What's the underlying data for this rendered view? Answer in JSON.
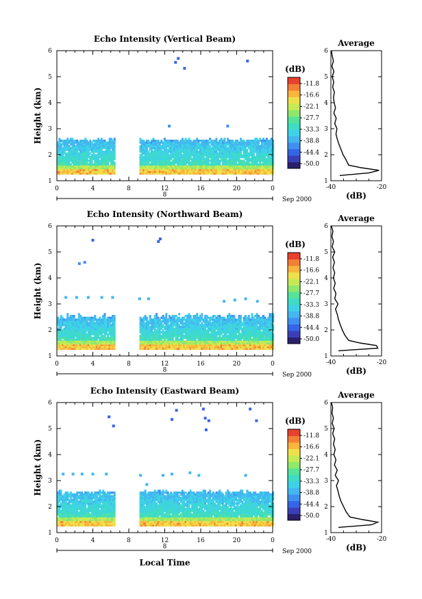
{
  "colors": {
    "scale": [
      "#2b1f6e",
      "#3a3fb8",
      "#3565e6",
      "#3f8ff0",
      "#44b6f0",
      "#3ed2e8",
      "#3fdcc4",
      "#55e39b",
      "#8fe86c",
      "#c5ea55",
      "#eee04a",
      "#f9b53d",
      "#f47f36",
      "#e8412e"
    ],
    "curve": "#000000",
    "axis": "#000000"
  },
  "colorbar": {
    "unit": "(dB)",
    "ticks": [
      "-11.8",
      "-16.6",
      "-22.1",
      "-27.7",
      "-33.3",
      "-38.8",
      "-44.4",
      "-50.0"
    ]
  },
  "date_label": "Sep 2000",
  "day_label": "8",
  "xlabel": "Local Time",
  "chart_data": [
    {
      "type": "heatmap",
      "title": "Echo Intensity (Vertical Beam)",
      "ylabel": "Height (km)",
      "xlim": [
        0,
        24
      ],
      "ylim": [
        1,
        6
      ],
      "xticks": [
        "0",
        "4",
        "8",
        "12",
        "16",
        "20",
        "0"
      ],
      "yticks": [
        "1",
        "2",
        "3",
        "4",
        "5",
        "6"
      ],
      "gap": [
        6.3,
        9.0
      ],
      "echo_layer_top_km": [
        2.5,
        2.6
      ],
      "peak_echo_km": 1.4,
      "scattered_points": [
        {
          "t": 13.2,
          "h": 5.55,
          "level": 2
        },
        {
          "t": 13.5,
          "h": 5.7,
          "level": 2
        },
        {
          "t": 14.2,
          "h": 5.32,
          "level": 2
        },
        {
          "t": 21.2,
          "h": 5.6,
          "level": 2
        },
        {
          "t": 12.5,
          "h": 3.1,
          "level": 3
        },
        {
          "t": 19.0,
          "h": 3.1,
          "level": 3
        }
      ],
      "average": {
        "title": "Average",
        "xlabel": "(dB)",
        "xlim": [
          -40,
          -20
        ],
        "xticks": [
          "-40",
          "-20"
        ],
        "height_km": [
          1.2,
          1.3,
          1.4,
          1.5,
          1.6,
          1.8,
          2.0,
          2.2,
          2.4,
          2.6,
          2.8,
          3.0,
          3.2,
          3.4,
          3.6,
          3.8,
          4.0,
          4.2,
          4.4,
          4.6,
          4.8,
          5.0,
          5.2,
          5.4,
          5.6,
          5.8,
          6.0
        ],
        "dB": [
          -36.5,
          -25.0,
          -21.0,
          -28.0,
          -33.0,
          -34.0,
          -35.2,
          -36.0,
          -36.8,
          -37.5,
          -38.0,
          -37.6,
          -38.5,
          -37.9,
          -38.8,
          -38.2,
          -38.7,
          -39.0,
          -38.6,
          -39.3,
          -38.9,
          -39.5,
          -38.8,
          -39.6,
          -39.0,
          -39.5,
          -39.8
        ]
      }
    },
    {
      "type": "heatmap",
      "title": "Echo Intensity (Northward Beam)",
      "ylabel": "Height (km)",
      "xlim": [
        0,
        24
      ],
      "ylim": [
        1,
        6
      ],
      "xticks": [
        "0",
        "4",
        "8",
        "12",
        "16",
        "20",
        "0"
      ],
      "yticks": [
        "1",
        "2",
        "3",
        "4",
        "5",
        "6"
      ],
      "gap": [
        6.3,
        9.0
      ],
      "echo_layer_top_km": [
        2.4,
        2.6
      ],
      "peak_echo_km": 1.35,
      "scattered_points": [
        {
          "t": 4.0,
          "h": 5.45,
          "level": 2
        },
        {
          "t": 11.5,
          "h": 5.5,
          "level": 2
        },
        {
          "t": 11.3,
          "h": 5.4,
          "level": 2
        },
        {
          "t": 2.5,
          "h": 4.55,
          "level": 3
        },
        {
          "t": 3.1,
          "h": 4.6,
          "level": 3
        },
        {
          "t": 1.0,
          "h": 3.25,
          "level": 4
        },
        {
          "t": 2.2,
          "h": 3.25,
          "level": 4
        },
        {
          "t": 3.5,
          "h": 3.25,
          "level": 4
        },
        {
          "t": 5.0,
          "h": 3.25,
          "level": 4
        },
        {
          "t": 6.2,
          "h": 3.25,
          "level": 4
        },
        {
          "t": 9.2,
          "h": 3.2,
          "level": 4
        },
        {
          "t": 10.2,
          "h": 3.2,
          "level": 4
        },
        {
          "t": 18.6,
          "h": 3.1,
          "level": 4
        },
        {
          "t": 19.8,
          "h": 3.15,
          "level": 4
        },
        {
          "t": 21.0,
          "h": 3.2,
          "level": 4
        },
        {
          "t": 22.3,
          "h": 3.1,
          "level": 4
        }
      ],
      "average": {
        "title": "Average",
        "xlabel": "(dB)",
        "xlim": [
          -40,
          -20
        ],
        "xticks": [
          "-40",
          "-20"
        ],
        "height_km": [
          1.2,
          1.3,
          1.4,
          1.5,
          1.6,
          1.8,
          2.0,
          2.2,
          2.4,
          2.6,
          2.8,
          3.0,
          3.2,
          3.4,
          3.6,
          3.8,
          4.0,
          4.2,
          4.4,
          4.6,
          4.8,
          5.0,
          5.2,
          5.4,
          5.6,
          5.8,
          6.0
        ],
        "dB": [
          -37.0,
          -21.5,
          -22.0,
          -28.5,
          -33.0,
          -34.5,
          -35.5,
          -36.3,
          -37.0,
          -37.5,
          -38.2,
          -37.2,
          -38.5,
          -38.0,
          -38.9,
          -38.3,
          -39.0,
          -38.5,
          -39.2,
          -38.6,
          -39.3,
          -38.5,
          -39.5,
          -39.0,
          -39.6,
          -39.2,
          -39.8
        ]
      }
    },
    {
      "type": "heatmap",
      "title": "Echo Intensity (Eastward Beam)",
      "ylabel": "Height (km)",
      "xlim": [
        0,
        24
      ],
      "ylim": [
        1,
        6
      ],
      "xticks": [
        "0",
        "4",
        "8",
        "12",
        "16",
        "20",
        "0"
      ],
      "yticks": [
        "1",
        "2",
        "3",
        "4",
        "5",
        "6"
      ],
      "gap": [
        6.3,
        9.0
      ],
      "echo_layer_top_km": [
        2.5,
        2.6
      ],
      "peak_echo_km": 1.35,
      "scattered_points": [
        {
          "t": 5.8,
          "h": 5.45,
          "level": 2
        },
        {
          "t": 6.3,
          "h": 5.1,
          "level": 2
        },
        {
          "t": 13.3,
          "h": 5.7,
          "level": 2
        },
        {
          "t": 12.8,
          "h": 5.35,
          "level": 2
        },
        {
          "t": 16.3,
          "h": 5.75,
          "level": 2
        },
        {
          "t": 16.5,
          "h": 5.4,
          "level": 2
        },
        {
          "t": 16.9,
          "h": 5.3,
          "level": 2
        },
        {
          "t": 16.6,
          "h": 4.95,
          "level": 2
        },
        {
          "t": 21.5,
          "h": 5.75,
          "level": 2
        },
        {
          "t": 22.2,
          "h": 5.3,
          "level": 2
        },
        {
          "t": 0.7,
          "h": 3.25,
          "level": 4
        },
        {
          "t": 1.8,
          "h": 3.25,
          "level": 4
        },
        {
          "t": 2.8,
          "h": 3.25,
          "level": 4
        },
        {
          "t": 4.0,
          "h": 3.25,
          "level": 4
        },
        {
          "t": 5.5,
          "h": 3.25,
          "level": 4
        },
        {
          "t": 9.3,
          "h": 3.2,
          "level": 4
        },
        {
          "t": 11.8,
          "h": 3.2,
          "level": 4
        },
        {
          "t": 12.8,
          "h": 3.25,
          "level": 4
        },
        {
          "t": 14.8,
          "h": 3.3,
          "level": 4
        },
        {
          "t": 15.8,
          "h": 3.2,
          "level": 4
        },
        {
          "t": 21.0,
          "h": 3.2,
          "level": 4
        },
        {
          "t": 10.0,
          "h": 2.85,
          "level": 4
        }
      ],
      "average": {
        "title": "Average",
        "xlabel": "(dB)",
        "xlim": [
          -40,
          -20
        ],
        "xticks": [
          "-40",
          "-20"
        ],
        "height_km": [
          1.2,
          1.3,
          1.4,
          1.5,
          1.6,
          1.8,
          2.0,
          2.2,
          2.4,
          2.6,
          2.8,
          3.0,
          3.2,
          3.4,
          3.6,
          3.8,
          4.0,
          4.2,
          4.4,
          4.6,
          4.8,
          5.0,
          5.2,
          5.4,
          5.6,
          5.8,
          6.0
        ],
        "dB": [
          -37.0,
          -24.0,
          -21.5,
          -27.5,
          -32.5,
          -34.0,
          -35.0,
          -36.0,
          -36.7,
          -37.2,
          -37.8,
          -37.0,
          -38.3,
          -37.5,
          -38.6,
          -38.0,
          -38.8,
          -38.3,
          -39.0,
          -38.5,
          -39.3,
          -38.7,
          -39.5,
          -39.0,
          -39.6,
          -39.3,
          -39.8
        ]
      }
    }
  ]
}
